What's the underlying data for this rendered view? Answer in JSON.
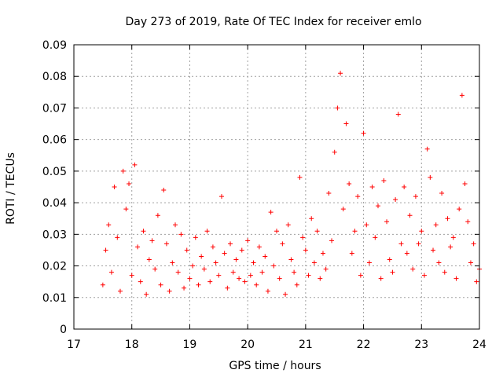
{
  "chart_data": {
    "type": "scatter",
    "title": "Day 273 of 2019, Rate Of TEC Index for receiver emlo",
    "xlabel": "GPS time / hours",
    "ylabel": "ROTI / TECUs",
    "xlim": [
      17,
      24
    ],
    "ylim": [
      0,
      0.09
    ],
    "x_ticks": [
      17,
      18,
      19,
      20,
      21,
      22,
      23,
      24
    ],
    "y_ticks": [
      0,
      0.01,
      0.02,
      0.03,
      0.04,
      0.05,
      0.06,
      0.07,
      0.08,
      0.09
    ],
    "x_tick_labels": [
      "17",
      "18",
      "19",
      "20",
      "21",
      "22",
      "23",
      "24"
    ],
    "y_tick_labels": [
      "0",
      "0.01",
      "0.02",
      "0.03",
      "0.04",
      "0.05",
      "0.06",
      "0.07",
      "0.08",
      "0.09"
    ],
    "grid": true,
    "marker": "+",
    "series": [
      {
        "name": "ROTI",
        "color": "#ff0000",
        "x": [
          17.5,
          17.55,
          17.6,
          17.65,
          17.7,
          17.75,
          17.8,
          17.85,
          17.9,
          17.95,
          18.0,
          18.05,
          18.1,
          18.15,
          18.2,
          18.25,
          18.3,
          18.35,
          18.4,
          18.45,
          18.5,
          18.55,
          18.6,
          18.65,
          18.7,
          18.75,
          18.8,
          18.85,
          18.9,
          18.95,
          19.0,
          19.05,
          19.1,
          19.15,
          19.2,
          19.25,
          19.3,
          19.35,
          19.4,
          19.45,
          19.5,
          19.55,
          19.6,
          19.65,
          19.7,
          19.75,
          19.8,
          19.85,
          19.9,
          19.95,
          20.0,
          20.05,
          20.1,
          20.15,
          20.2,
          20.25,
          20.3,
          20.35,
          20.4,
          20.45,
          20.5,
          20.55,
          20.6,
          20.65,
          20.7,
          20.75,
          20.8,
          20.85,
          20.9,
          20.95,
          21.0,
          21.05,
          21.1,
          21.15,
          21.2,
          21.25,
          21.3,
          21.35,
          21.4,
          21.45,
          21.5,
          21.55,
          21.6,
          21.65,
          21.7,
          21.75,
          21.8,
          21.85,
          21.9,
          21.95,
          22.0,
          22.05,
          22.1,
          22.15,
          22.2,
          22.25,
          22.3,
          22.35,
          22.4,
          22.45,
          22.5,
          22.55,
          22.6,
          22.65,
          22.7,
          22.75,
          22.8,
          22.85,
          22.9,
          22.95,
          23.0,
          23.05,
          23.1,
          23.15,
          23.2,
          23.25,
          23.3,
          23.35,
          23.4,
          23.45,
          23.5,
          23.55,
          23.6,
          23.65,
          23.7,
          23.75,
          23.8,
          23.85,
          23.9,
          23.95,
          24.0
        ],
        "y": [
          0.014,
          0.025,
          0.033,
          0.018,
          0.045,
          0.029,
          0.012,
          0.05,
          0.038,
          0.046,
          0.017,
          0.052,
          0.026,
          0.015,
          0.031,
          0.011,
          0.022,
          0.028,
          0.019,
          0.036,
          0.014,
          0.044,
          0.027,
          0.012,
          0.021,
          0.033,
          0.018,
          0.03,
          0.013,
          0.025,
          0.016,
          0.02,
          0.029,
          0.014,
          0.023,
          0.019,
          0.031,
          0.015,
          0.026,
          0.021,
          0.017,
          0.042,
          0.024,
          0.013,
          0.027,
          0.018,
          0.022,
          0.016,
          0.025,
          0.015,
          0.028,
          0.017,
          0.021,
          0.014,
          0.026,
          0.018,
          0.023,
          0.012,
          0.037,
          0.02,
          0.031,
          0.016,
          0.027,
          0.011,
          0.033,
          0.022,
          0.018,
          0.014,
          0.048,
          0.029,
          0.025,
          0.017,
          0.035,
          0.021,
          0.031,
          0.016,
          0.024,
          0.019,
          0.043,
          0.028,
          0.056,
          0.07,
          0.081,
          0.038,
          0.065,
          0.046,
          0.024,
          0.031,
          0.042,
          0.017,
          0.062,
          0.033,
          0.021,
          0.045,
          0.029,
          0.039,
          0.016,
          0.047,
          0.034,
          0.022,
          0.018,
          0.041,
          0.068,
          0.027,
          0.045,
          0.024,
          0.036,
          0.019,
          0.042,
          0.027,
          0.031,
          0.017,
          0.057,
          0.048,
          0.025,
          0.033,
          0.021,
          0.043,
          0.018,
          0.035,
          0.026,
          0.029,
          0.016,
          0.038,
          0.074,
          0.046,
          0.034,
          0.021,
          0.027,
          0.015,
          0.019
        ]
      }
    ]
  }
}
